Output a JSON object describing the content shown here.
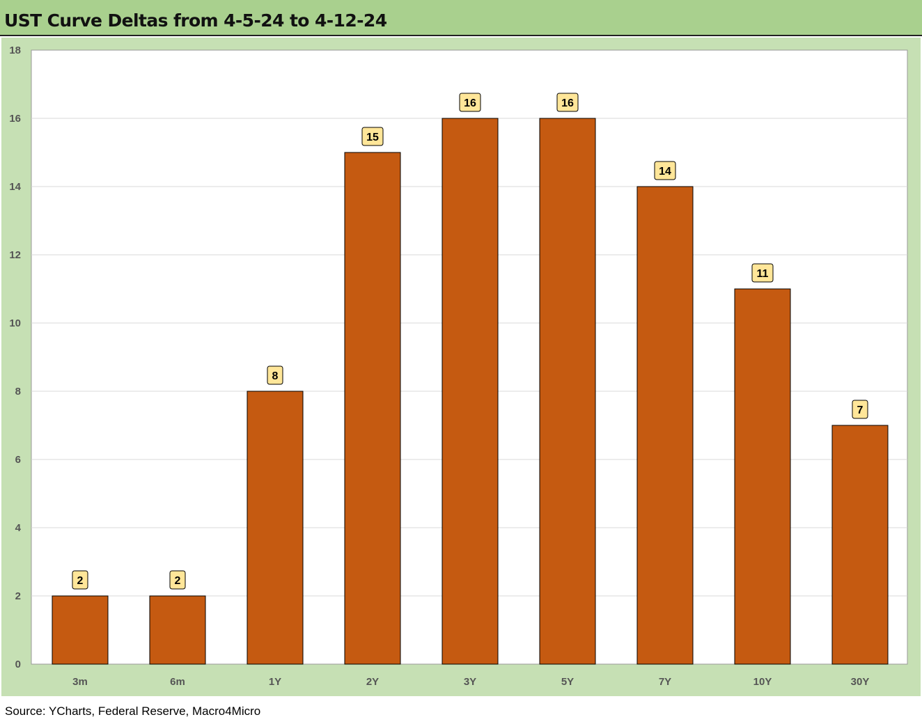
{
  "header": {
    "title": "UST Curve Deltas from 4-5-24 to 4-12-24"
  },
  "footer": {
    "source": "Source: YCharts, Federal Reserve, Macro4Micro"
  },
  "colors": {
    "title_band": "#a9d08e",
    "chart_background": "#c6e0b4",
    "plot_background": "#ffffff",
    "bar_fill": "#c55a11",
    "label_fill": "#ffe699"
  },
  "chart_data": {
    "type": "bar",
    "title": "UST Curve Deltas from 4-5-24 to 4-12-24",
    "xlabel": "",
    "ylabel": "",
    "categories": [
      "3m",
      "6m",
      "1Y",
      "2Y",
      "3Y",
      "5Y",
      "7Y",
      "10Y",
      "30Y"
    ],
    "values": [
      2,
      2,
      8,
      15,
      16,
      16,
      14,
      11,
      7
    ],
    "ylim": [
      0,
      18
    ],
    "yticks": [
      0,
      2,
      4,
      6,
      8,
      10,
      12,
      14,
      16,
      18
    ],
    "grid": true,
    "legend": "none",
    "data_labels": true
  }
}
